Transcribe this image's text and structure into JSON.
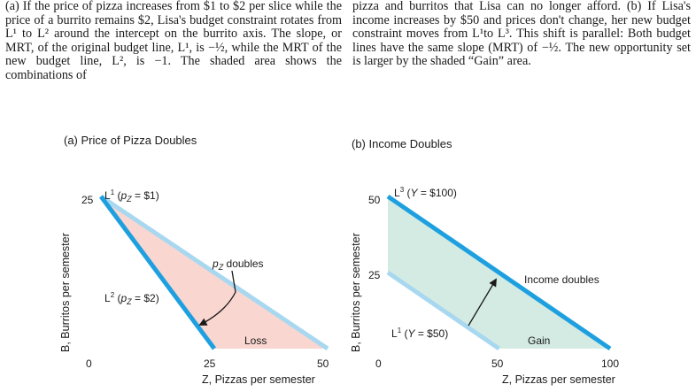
{
  "caption": {
    "left": "(a) If the price of pizza increases from $1 to $2 per slice while the price of a burrito remains $2, Lisa's budget constraint rotates from L¹ to L² around the intercept on the burrito axis. The slope, or MRT, of the original budget line, L¹, is −½, while the MRT of the new budget line, L², is −1. The shaded area shows the combinations of",
    "right": "pizza and burritos that Lisa can no longer afford. (b) If Lisa's income increases by $50 and prices don't change, her new budget constraint moves from L¹to L³. This shift is parallel: Both budget lines have the same slope (MRT) of −½. The new opportunity set is larger by the shaded “Gain” area."
  },
  "colors": {
    "old_line": "#a8d8f0",
    "new_line": "#1ea0e0",
    "loss_fill": "#f9d6d0",
    "gain_fill": "#d3ebe2",
    "text": "#1a1a1a"
  },
  "chart_data": [
    {
      "type": "line",
      "title": "(a) Price of Pizza Doubles",
      "xlabel": "Z, Pizzas per semester",
      "ylabel": "B, Burritos per semester",
      "x_ticks": [
        "0",
        "25",
        "50"
      ],
      "y_ticks": [
        "25"
      ],
      "xlim": [
        0,
        50
      ],
      "ylim": [
        0,
        25
      ],
      "series": [
        {
          "name": "L¹ (pZ = $1)",
          "x": [
            0,
            50
          ],
          "y": [
            25,
            0
          ]
        },
        {
          "name": "L² (pZ = $2)",
          "x": [
            0,
            25
          ],
          "y": [
            25,
            0
          ]
        }
      ],
      "annotations": [
        "pZ doubles",
        "Loss"
      ]
    },
    {
      "type": "line",
      "title": "(b) Income Doubles",
      "xlabel": "Z, Pizzas per semester",
      "ylabel": "B, Burritos per semester",
      "x_ticks": [
        "0",
        "50",
        "100"
      ],
      "y_ticks": [
        "25",
        "50"
      ],
      "xlim": [
        0,
        100
      ],
      "ylim": [
        0,
        50
      ],
      "series": [
        {
          "name": "L¹ (Y = $50)",
          "x": [
            0,
            50
          ],
          "y": [
            25,
            0
          ]
        },
        {
          "name": "L³ (Y = $100)",
          "x": [
            0,
            100
          ],
          "y": [
            50,
            0
          ]
        }
      ],
      "annotations": [
        "Income doubles",
        "Gain"
      ]
    }
  ]
}
